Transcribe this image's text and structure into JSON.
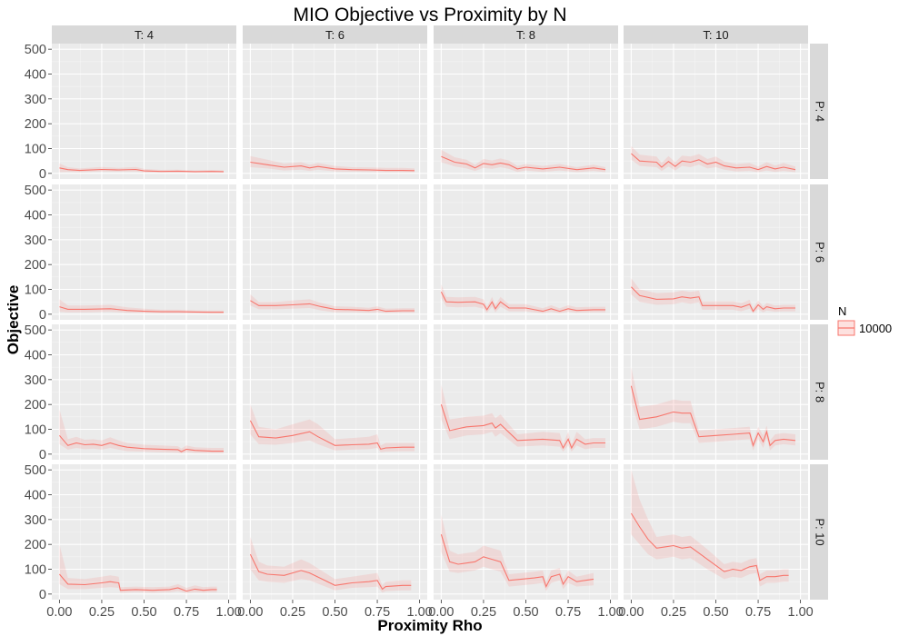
{
  "chart_data": {
    "type": "line",
    "title": "MIO Objective vs Proximity by N",
    "xlabel": "Proximity Rho",
    "ylabel": "Objective",
    "xlim": [
      0,
      1
    ],
    "ylim": [
      0,
      500
    ],
    "x_ticks": [
      0,
      0.25,
      0.5,
      0.75,
      1
    ],
    "x_tick_labels": [
      "0.00",
      "0.25",
      "0.50",
      "0.75",
      "1.00"
    ],
    "y_ticks": [
      0,
      100,
      200,
      300,
      400,
      500
    ],
    "y_tick_labels": [
      "0",
      "100",
      "200",
      "300",
      "400",
      "500"
    ],
    "grid": true,
    "facet_cols": [
      "T: 4",
      "T: 6",
      "T: 8",
      "T: 10"
    ],
    "facet_rows": [
      "P: 4",
      "P: 6",
      "P: 8",
      "P: 10"
    ],
    "legend": {
      "title": "N",
      "entries": [
        "10000"
      ],
      "position": "right"
    },
    "series_color": "#F8766D",
    "panels": [
      {
        "row": "P: 4",
        "col": "T: 4",
        "x": [
          0,
          0.05,
          0.12,
          0.25,
          0.35,
          0.45,
          0.5,
          0.6,
          0.7,
          0.8,
          0.9,
          0.97
        ],
        "y": [
          22,
          15,
          12,
          16,
          14,
          16,
          10,
          8,
          9,
          7,
          8,
          7
        ],
        "lower": [
          5,
          6,
          5,
          8,
          7,
          8,
          4,
          4,
          4,
          3,
          4,
          3
        ],
        "upper": [
          40,
          25,
          20,
          26,
          22,
          26,
          18,
          14,
          15,
          12,
          14,
          12
        ]
      },
      {
        "row": "P: 4",
        "col": "T: 6",
        "x": [
          0,
          0.1,
          0.2,
          0.3,
          0.35,
          0.4,
          0.5,
          0.6,
          0.7,
          0.8,
          0.9,
          0.97
        ],
        "y": [
          45,
          35,
          25,
          30,
          22,
          28,
          18,
          15,
          14,
          12,
          12,
          11
        ],
        "lower": [
          25,
          20,
          12,
          15,
          10,
          15,
          8,
          7,
          6,
          5,
          5,
          5
        ],
        "upper": [
          70,
          55,
          40,
          45,
          35,
          42,
          30,
          25,
          24,
          22,
          22,
          20
        ]
      },
      {
        "row": "P: 4",
        "col": "T: 8",
        "x": [
          0,
          0.08,
          0.15,
          0.2,
          0.25,
          0.3,
          0.35,
          0.4,
          0.45,
          0.5,
          0.6,
          0.7,
          0.8,
          0.9,
          0.97
        ],
        "y": [
          68,
          45,
          38,
          22,
          40,
          35,
          42,
          35,
          18,
          25,
          18,
          25,
          15,
          22,
          15
        ],
        "lower": [
          45,
          28,
          20,
          10,
          22,
          18,
          25,
          18,
          6,
          12,
          6,
          12,
          5,
          10,
          5
        ],
        "upper": [
          95,
          65,
          55,
          35,
          58,
          52,
          60,
          52,
          30,
          38,
          30,
          38,
          25,
          35,
          25
        ]
      },
      {
        "row": "P: 4",
        "col": "T: 10",
        "x": [
          0,
          0.05,
          0.15,
          0.18,
          0.22,
          0.26,
          0.3,
          0.35,
          0.4,
          0.45,
          0.5,
          0.55,
          0.62,
          0.7,
          0.75,
          0.8,
          0.85,
          0.9,
          0.97
        ],
        "y": [
          80,
          50,
          45,
          25,
          48,
          28,
          50,
          45,
          55,
          38,
          45,
          30,
          22,
          25,
          15,
          28,
          18,
          25,
          15
        ],
        "lower": [
          55,
          30,
          25,
          10,
          28,
          12,
          30,
          25,
          35,
          20,
          25,
          15,
          8,
          10,
          5,
          12,
          6,
          10,
          5
        ],
        "upper": [
          110,
          75,
          68,
          42,
          70,
          45,
          72,
          68,
          78,
          58,
          68,
          48,
          38,
          42,
          28,
          45,
          32,
          42,
          28
        ]
      },
      {
        "row": "P: 6",
        "col": "T: 4",
        "x": [
          0,
          0.05,
          0.15,
          0.3,
          0.4,
          0.5,
          0.6,
          0.7,
          0.8,
          0.9,
          0.97
        ],
        "y": [
          30,
          20,
          20,
          22,
          15,
          12,
          10,
          10,
          9,
          8,
          8
        ],
        "lower": [
          10,
          8,
          8,
          10,
          6,
          5,
          4,
          4,
          4,
          3,
          3
        ],
        "upper": [
          60,
          35,
          35,
          38,
          28,
          22,
          18,
          18,
          16,
          15,
          15
        ]
      },
      {
        "row": "P: 6",
        "col": "T: 6",
        "x": [
          0,
          0.05,
          0.15,
          0.25,
          0.35,
          0.42,
          0.5,
          0.6,
          0.7,
          0.75,
          0.8,
          0.9,
          0.97
        ],
        "y": [
          55,
          35,
          35,
          38,
          42,
          30,
          20,
          18,
          15,
          20,
          12,
          14,
          14
        ],
        "lower": [
          35,
          20,
          20,
          22,
          25,
          15,
          8,
          8,
          6,
          8,
          5,
          6,
          6
        ],
        "upper": [
          80,
          50,
          50,
          55,
          60,
          45,
          32,
          30,
          26,
          32,
          22,
          24,
          24
        ]
      },
      {
        "row": "P: 6",
        "col": "T: 8",
        "x": [
          0,
          0.03,
          0.1,
          0.2,
          0.25,
          0.27,
          0.3,
          0.32,
          0.35,
          0.4,
          0.5,
          0.6,
          0.65,
          0.7,
          0.75,
          0.8,
          0.9,
          0.97
        ],
        "y": [
          90,
          50,
          48,
          50,
          40,
          18,
          50,
          22,
          50,
          25,
          25,
          12,
          22,
          12,
          22,
          15,
          18,
          18
        ],
        "lower": [
          65,
          30,
          28,
          30,
          22,
          6,
          30,
          8,
          30,
          12,
          12,
          4,
          10,
          4,
          10,
          6,
          8,
          8
        ],
        "upper": [
          120,
          70,
          68,
          70,
          60,
          30,
          70,
          38,
          70,
          40,
          40,
          24,
          36,
          24,
          36,
          28,
          30,
          30
        ]
      },
      {
        "row": "P: 6",
        "col": "T: 10",
        "x": [
          0,
          0.05,
          0.15,
          0.25,
          0.3,
          0.35,
          0.4,
          0.42,
          0.5,
          0.6,
          0.65,
          0.7,
          0.72,
          0.75,
          0.78,
          0.8,
          0.85,
          0.9,
          0.97
        ],
        "y": [
          110,
          75,
          60,
          62,
          70,
          65,
          70,
          35,
          35,
          35,
          28,
          40,
          12,
          38,
          20,
          30,
          22,
          25,
          25
        ],
        "lower": [
          80,
          50,
          38,
          40,
          48,
          42,
          48,
          18,
          18,
          18,
          12,
          22,
          4,
          20,
          8,
          15,
          10,
          12,
          12
        ],
        "upper": [
          145,
          100,
          85,
          88,
          95,
          90,
          95,
          52,
          52,
          52,
          45,
          58,
          25,
          55,
          32,
          45,
          35,
          38,
          38
        ]
      },
      {
        "row": "P: 8",
        "col": "T: 4",
        "x": [
          0,
          0.05,
          0.1,
          0.15,
          0.2,
          0.25,
          0.3,
          0.35,
          0.4,
          0.5,
          0.6,
          0.7,
          0.72,
          0.75,
          0.8,
          0.9,
          0.97
        ],
        "y": [
          75,
          35,
          45,
          38,
          40,
          35,
          45,
          35,
          28,
          22,
          20,
          18,
          10,
          20,
          15,
          12,
          12
        ],
        "lower": [
          40,
          18,
          25,
          20,
          22,
          18,
          25,
          18,
          12,
          10,
          8,
          6,
          3,
          8,
          5,
          4,
          4
        ],
        "upper": [
          180,
          60,
          70,
          58,
          60,
          55,
          68,
          55,
          45,
          38,
          35,
          32,
          22,
          35,
          28,
          25,
          25
        ]
      },
      {
        "row": "P: 8",
        "col": "T: 6",
        "x": [
          0,
          0.05,
          0.15,
          0.25,
          0.35,
          0.4,
          0.5,
          0.6,
          0.7,
          0.75,
          0.77,
          0.8,
          0.9,
          0.97
        ],
        "y": [
          135,
          70,
          65,
          75,
          90,
          70,
          35,
          38,
          40,
          45,
          20,
          25,
          28,
          28
        ],
        "lower": [
          80,
          40,
          38,
          45,
          55,
          40,
          15,
          18,
          20,
          25,
          8,
          10,
          12,
          12
        ],
        "upper": [
          200,
          110,
          100,
          120,
          140,
          120,
          60,
          65,
          70,
          80,
          35,
          45,
          45,
          45
        ]
      },
      {
        "row": "P: 8",
        "col": "T: 8",
        "x": [
          0,
          0.05,
          0.15,
          0.25,
          0.3,
          0.32,
          0.35,
          0.45,
          0.6,
          0.7,
          0.72,
          0.75,
          0.77,
          0.8,
          0.85,
          0.9,
          0.97
        ],
        "y": [
          200,
          95,
          110,
          115,
          125,
          105,
          120,
          55,
          60,
          55,
          25,
          60,
          25,
          60,
          40,
          45,
          45
        ],
        "lower": [
          140,
          60,
          75,
          80,
          90,
          70,
          85,
          30,
          35,
          30,
          10,
          35,
          10,
          35,
          20,
          25,
          25
        ],
        "upper": [
          280,
          140,
          150,
          155,
          165,
          145,
          160,
          80,
          90,
          85,
          40,
          90,
          40,
          90,
          60,
          65,
          65
        ]
      },
      {
        "row": "P: 8",
        "col": "T: 10",
        "x": [
          0,
          0.05,
          0.15,
          0.25,
          0.3,
          0.35,
          0.4,
          0.5,
          0.6,
          0.7,
          0.72,
          0.75,
          0.78,
          0.8,
          0.82,
          0.85,
          0.9,
          0.97
        ],
        "y": [
          275,
          140,
          150,
          170,
          165,
          165,
          70,
          75,
          80,
          85,
          35,
          85,
          50,
          90,
          35,
          55,
          60,
          55
        ],
        "lower": [
          210,
          100,
          110,
          130,
          125,
          125,
          45,
          50,
          55,
          60,
          15,
          60,
          25,
          65,
          15,
          35,
          40,
          35
        ],
        "upper": [
          350,
          190,
          200,
          220,
          215,
          215,
          95,
          100,
          105,
          110,
          50,
          110,
          75,
          115,
          55,
          80,
          85,
          80
        ]
      },
      {
        "row": "P: 10",
        "col": "T: 4",
        "x": [
          0,
          0.05,
          0.15,
          0.25,
          0.3,
          0.35,
          0.36,
          0.45,
          0.55,
          0.65,
          0.7,
          0.75,
          0.8,
          0.85,
          0.9,
          0.93
        ],
        "y": [
          80,
          40,
          38,
          45,
          50,
          45,
          15,
          18,
          15,
          18,
          25,
          12,
          20,
          15,
          18,
          18
        ],
        "lower": [
          40,
          20,
          20,
          25,
          28,
          25,
          5,
          8,
          5,
          8,
          12,
          4,
          8,
          6,
          8,
          8
        ],
        "upper": [
          200,
          65,
          60,
          70,
          75,
          70,
          28,
          30,
          28,
          30,
          40,
          25,
          35,
          28,
          30,
          30
        ]
      },
      {
        "row": "P: 10",
        "col": "T: 6",
        "x": [
          0,
          0.05,
          0.1,
          0.2,
          0.3,
          0.35,
          0.5,
          0.6,
          0.7,
          0.75,
          0.78,
          0.8,
          0.9,
          0.95
        ],
        "y": [
          160,
          90,
          80,
          75,
          95,
          85,
          35,
          45,
          50,
          55,
          20,
          30,
          35,
          35
        ],
        "lower": [
          100,
          55,
          50,
          45,
          60,
          55,
          15,
          25,
          28,
          30,
          6,
          12,
          15,
          15
        ],
        "upper": [
          230,
          130,
          115,
          110,
          140,
          125,
          60,
          70,
          80,
          85,
          35,
          50,
          55,
          55
        ]
      },
      {
        "row": "P: 10",
        "col": "T: 8",
        "x": [
          0,
          0.05,
          0.1,
          0.2,
          0.25,
          0.3,
          0.35,
          0.4,
          0.55,
          0.6,
          0.62,
          0.65,
          0.7,
          0.72,
          0.75,
          0.8,
          0.9
        ],
        "y": [
          240,
          130,
          120,
          130,
          150,
          140,
          130,
          55,
          65,
          70,
          30,
          70,
          80,
          40,
          70,
          50,
          60
        ],
        "lower": [
          170,
          90,
          85,
          95,
          110,
          100,
          90,
          30,
          40,
          45,
          12,
          45,
          55,
          20,
          45,
          30,
          35
        ],
        "upper": [
          320,
          175,
          160,
          170,
          195,
          185,
          175,
          80,
          90,
          95,
          50,
          95,
          105,
          60,
          95,
          70,
          85
        ]
      },
      {
        "row": "P: 10",
        "col": "T: 10",
        "x": [
          0,
          0.05,
          0.1,
          0.15,
          0.2,
          0.25,
          0.3,
          0.35,
          0.45,
          0.55,
          0.6,
          0.65,
          0.7,
          0.74,
          0.76,
          0.8,
          0.85,
          0.9,
          0.93
        ],
        "y": [
          325,
          270,
          220,
          185,
          190,
          195,
          185,
          190,
          140,
          90,
          100,
          95,
          110,
          115,
          55,
          70,
          70,
          75,
          75
        ],
        "lower": [
          240,
          200,
          160,
          140,
          145,
          150,
          140,
          145,
          100,
          60,
          70,
          65,
          80,
          85,
          30,
          45,
          45,
          50,
          50
        ],
        "upper": [
          500,
          380,
          300,
          230,
          235,
          240,
          230,
          235,
          180,
          120,
          130,
          125,
          140,
          145,
          80,
          95,
          95,
          100,
          100
        ]
      }
    ]
  }
}
